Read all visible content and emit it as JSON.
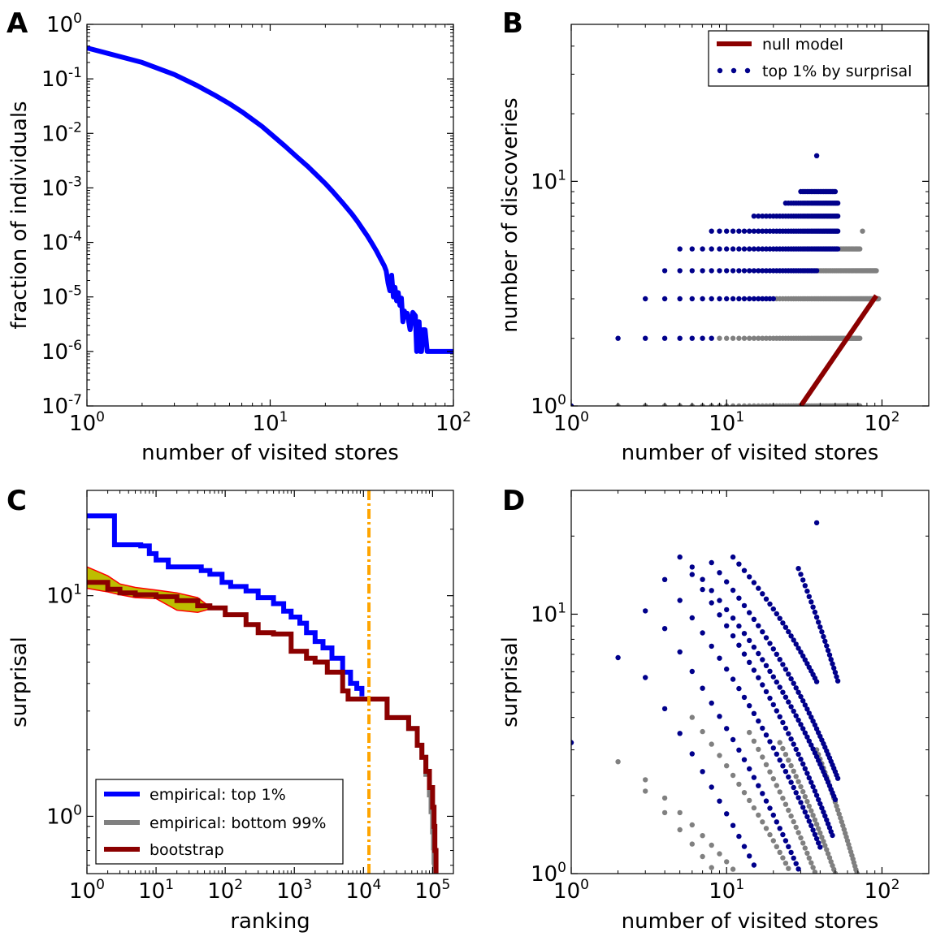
{
  "colors": {
    "blue": "#0000ff",
    "navy": "#00008b",
    "gray": "#808080",
    "darkred": "#8b0000",
    "orange": "#ffa500",
    "olive": "#bdbd00",
    "red": "#ff0000"
  },
  "chart_data": [
    {
      "id": "A",
      "letter": "A",
      "type": "line",
      "xlabel": "number of visited stores",
      "ylabel": "fraction of individuals",
      "xscale": "log",
      "yscale": "log",
      "xlim": [
        1,
        100
      ],
      "ylim": [
        1e-07,
        1
      ],
      "xticks": [
        {
          "base": "10",
          "exp": "0",
          "v": 1
        },
        {
          "base": "10",
          "exp": "1",
          "v": 10
        },
        {
          "base": "10",
          "exp": "2",
          "v": 100
        }
      ],
      "yticks": [
        {
          "base": "10",
          "exp": "0",
          "v": 1
        },
        {
          "base": "10",
          "exp": "-1",
          "v": 0.1
        },
        {
          "base": "10",
          "exp": "-2",
          "v": 0.01
        },
        {
          "base": "10",
          "exp": "-3",
          "v": 0.001
        },
        {
          "base": "10",
          "exp": "-4",
          "v": 0.0001
        },
        {
          "base": "10",
          "exp": "-5",
          "v": 1e-05
        },
        {
          "base": "10",
          "exp": "-6",
          "v": 1e-06
        },
        {
          "base": "10",
          "exp": "-7",
          "v": 1e-07
        }
      ],
      "series": [
        {
          "name": "distribution",
          "color": "#0000ff",
          "x": [
            1,
            2,
            3,
            4,
            5,
            6,
            7,
            8,
            9,
            10,
            12,
            14,
            16,
            18,
            20,
            22,
            25,
            28,
            30,
            32,
            34,
            36,
            38,
            40,
            42,
            43,
            44,
            45,
            46,
            47,
            48,
            49,
            50,
            51,
            52,
            53,
            54,
            55,
            56,
            58,
            60,
            62,
            63,
            64,
            65,
            66,
            67,
            68,
            70,
            72,
            75,
            80,
            90,
            100
          ],
          "y": [
            0.37,
            0.2,
            0.12,
            0.075,
            0.05,
            0.035,
            0.025,
            0.018,
            0.0135,
            0.01,
            0.0059,
            0.0037,
            0.0025,
            0.0017,
            0.0012,
            0.00085,
            0.00052,
            0.00033,
            0.00024,
            0.000175,
            0.00013,
            9.5e-05,
            7e-05,
            5e-05,
            3.7e-05,
            3e-05,
            1.8e-05,
            1.3e-05,
            2.5e-05,
            1e-05,
            1.5e-05,
            8.5e-06,
            1.2e-05,
            7e-06,
            9.5e-06,
            3.5e-06,
            5.5e-06,
            4.5e-06,
            5e-06,
            2.5e-06,
            5.2e-06,
            4.5e-06,
            1e-06,
            2.5e-06,
            3.5e-06,
            1e-06,
            1e-06,
            2.5e-06,
            2.5e-06,
            1e-06,
            1e-06,
            1e-06,
            1e-06,
            1e-06
          ]
        }
      ]
    },
    {
      "id": "B",
      "letter": "B",
      "type": "scatter",
      "xlabel": "number of visited stores",
      "ylabel": "number of discoveries",
      "xscale": "log",
      "yscale": "log",
      "xlim": [
        1,
        200
      ],
      "ylim": [
        1,
        50
      ],
      "xticks": [
        {
          "base": "10",
          "exp": "0",
          "v": 1
        },
        {
          "base": "10",
          "exp": "1",
          "v": 10
        },
        {
          "base": "10",
          "exp": "2",
          "v": 100
        }
      ],
      "yticks": [
        {
          "base": "10",
          "exp": "0",
          "v": 1
        },
        {
          "base": "10",
          "exp": "1",
          "v": 10
        }
      ],
      "legend": {
        "position": "top-right",
        "entries": [
          {
            "label": "null model",
            "kind": "line",
            "color": "#8b0000"
          },
          {
            "label": "top 1% by surprisal",
            "kind": "dots",
            "color": "#00008b"
          }
        ]
      },
      "null_model": {
        "color": "#8b0000",
        "x": [
          30,
          92
        ],
        "y": [
          1,
          3.1
        ]
      },
      "top_rows": [
        {
          "y": 1,
          "x_from": 1,
          "x_to": 1
        },
        {
          "y": 2,
          "x_from": 2,
          "x_to": 8
        },
        {
          "y": 3,
          "x_from": 3,
          "x_to": 20
        },
        {
          "y": 4,
          "x_from": 4,
          "x_to": 38
        },
        {
          "y": 5,
          "x_from": 5,
          "x_to": 52
        },
        {
          "y": 6,
          "x_from": 8,
          "x_to": 52
        },
        {
          "y": 7,
          "x_from": 15,
          "x_to": 52
        },
        {
          "y": 8,
          "x_from": 24,
          "x_to": 52
        },
        {
          "y": 9,
          "x_from": 30,
          "x_to": 50
        },
        {
          "y": 13,
          "x_from": 38,
          "x_to": 38
        }
      ],
      "bottom_rows": [
        {
          "y": 1,
          "x_from": 2,
          "x_to": 72
        },
        {
          "y": 2,
          "x_from": 9,
          "x_to": 72
        },
        {
          "y": 3,
          "x_from": 21,
          "x_to": 95
        },
        {
          "y": 4,
          "x_from": 39,
          "x_to": 92
        },
        {
          "y": 5,
          "x_from": 54,
          "x_to": 72
        },
        {
          "y": 6,
          "x_from": 75,
          "x_to": 75
        }
      ]
    },
    {
      "id": "C",
      "letter": "C",
      "type": "line",
      "xlabel": "ranking",
      "ylabel": "surprisal",
      "xscale": "log",
      "yscale": "log",
      "xlim": [
        1,
        200000
      ],
      "ylim": [
        0.55,
        30
      ],
      "xticks": [
        {
          "base": "10",
          "exp": "0",
          "v": 1
        },
        {
          "base": "10",
          "exp": "1",
          "v": 10
        },
        {
          "base": "10",
          "exp": "2",
          "v": 100
        },
        {
          "base": "10",
          "exp": "3",
          "v": 1000
        },
        {
          "base": "10",
          "exp": "4",
          "v": 10000
        },
        {
          "base": "10",
          "exp": "5",
          "v": 100000
        }
      ],
      "yticks": [
        {
          "base": "10",
          "exp": "0",
          "v": 1
        },
        {
          "base": "10",
          "exp": "1",
          "v": 10
        }
      ],
      "threshold_x": 12000,
      "legend": {
        "position": "bottom-left",
        "entries": [
          {
            "label": "empirical: top 1%",
            "color": "#0000ff"
          },
          {
            "label": "empirical: bottom 99%",
            "color": "#808080"
          },
          {
            "label": "bootstrap",
            "color": "#8b0000"
          }
        ]
      },
      "band": {
        "x": [
          1,
          2,
          3,
          5,
          10,
          20,
          40,
          60,
          100
        ],
        "upper": [
          13.5,
          12.3,
          11.3,
          10.9,
          10.6,
          10.3,
          9.8,
          8.9,
          8.9
        ],
        "lower": [
          10.8,
          10.4,
          10.1,
          9.8,
          9.7,
          8.6,
          8.4,
          8.7,
          8.7
        ]
      },
      "series": [
        {
          "name": "empirical: top 1%",
          "color": "#0000ff",
          "x": [
            1,
            2.5,
            6,
            8,
            10,
            15,
            25,
            45,
            60,
            90,
            120,
            200,
            300,
            500,
            700,
            900,
            1200,
            1500,
            2000,
            2600,
            3500,
            5000,
            6500,
            8000,
            9500
          ],
          "y": [
            23,
            17,
            16.8,
            15.5,
            14.5,
            13.5,
            13.5,
            13,
            12.5,
            11.5,
            11,
            10.5,
            9.8,
            9.2,
            8.5,
            8,
            7.5,
            6.8,
            6.2,
            5.8,
            5.2,
            4.5,
            4,
            3.8,
            3.5
          ]
        },
        {
          "name": "empirical: bottom 99%",
          "color": "#808080",
          "x": [
            11000,
            20000,
            22000,
            40000,
            45000,
            60000,
            70000,
            80000,
            90000,
            95000,
            100000,
            103000,
            105000,
            107000
          ],
          "y": [
            3.4,
            3.4,
            2.8,
            2.8,
            2.5,
            2.1,
            1.85,
            1.55,
            1.25,
            1.05,
            0.85,
            0.72,
            0.62,
            0.55
          ]
        },
        {
          "name": "bootstrap",
          "color": "#8b0000",
          "x": [
            1,
            2,
            3,
            5,
            10,
            20,
            40,
            60,
            100,
            200,
            300,
            500,
            900,
            1200,
            1500,
            2000,
            3000,
            5000,
            6000,
            10000,
            20000,
            22000,
            40000,
            45000,
            60000,
            70000,
            80000,
            90000,
            100000,
            105000,
            108000,
            112000
          ],
          "y": [
            11.5,
            10.7,
            10.3,
            10.1,
            9.9,
            9.5,
            9,
            8.8,
            8.2,
            7.4,
            6.8,
            6.7,
            5.6,
            5.6,
            5.2,
            5,
            4.5,
            3.7,
            3.4,
            3.4,
            3.4,
            2.8,
            2.8,
            2.5,
            2.1,
            1.85,
            1.6,
            1.35,
            1.1,
            0.9,
            0.7,
            0.55
          ]
        }
      ]
    },
    {
      "id": "D",
      "letter": "D",
      "type": "scatter",
      "xlabel": "number of visited stores",
      "ylabel": "surprisal",
      "xscale": "log",
      "yscale": "log",
      "xlim": [
        1,
        200
      ],
      "ylim": [
        1,
        30
      ],
      "xticks": [
        {
          "base": "10",
          "exp": "0",
          "v": 1
        },
        {
          "base": "10",
          "exp": "1",
          "v": 10
        },
        {
          "base": "10",
          "exp": "2",
          "v": 100
        }
      ],
      "yticks": [
        {
          "base": "10",
          "exp": "0",
          "v": 1
        },
        {
          "base": "10",
          "exp": "1",
          "v": 10
        }
      ],
      "top_curves": [
        {
          "x_from": 1,
          "x_to": 1,
          "y_start": 3.2,
          "slope": -1.0
        },
        {
          "x_from": 2,
          "x_to": 2,
          "y_start": 6.8,
          "slope": -1.0
        },
        {
          "x_from": 3,
          "x_to": 3,
          "y_start": 10.3,
          "slope": -1.0
        },
        {
          "x_from": 3,
          "x_to": 35,
          "y_start": 5.7,
          "slope": -0.9
        },
        {
          "x_from": 4,
          "x_to": 38,
          "y_start": 8.8,
          "slope": -0.85
        },
        {
          "x_from": 4,
          "x_to": 40,
          "y_start": 13.6,
          "slope": -0.75
        },
        {
          "x_from": 5,
          "x_to": 48,
          "y_start": 16.6,
          "slope": -0.75
        },
        {
          "x_from": 6,
          "x_to": 50,
          "y_start": 15.2,
          "slope": -0.6
        },
        {
          "x_from": 8,
          "x_to": 52,
          "y_start": 15.8,
          "slope": -0.6
        },
        {
          "x_from": 11,
          "x_to": 38,
          "y_start": 16.6,
          "slope": -0.5
        },
        {
          "x_from": 29,
          "x_to": 52,
          "y_start": 15,
          "slope": -1.0
        },
        {
          "x_from": 38,
          "x_to": 38,
          "y_start": 22.5,
          "slope": -1.0
        }
      ],
      "bottom_curves": [
        {
          "x_from": 2,
          "x_to": 14,
          "y_start": 2.7,
          "slope": -0.6
        },
        {
          "x_from": 3,
          "x_to": 14,
          "y_start": 2.3,
          "slope": -0.5
        },
        {
          "x_from": 6,
          "x_to": 38,
          "y_start": 4.0,
          "slope": -0.7
        },
        {
          "x_from": 14,
          "x_to": 72,
          "y_start": 3.5,
          "slope": -0.85
        },
        {
          "x_from": 22,
          "x_to": 85,
          "y_start": 3.2,
          "slope": -0.8
        },
        {
          "x_from": 38,
          "x_to": 95,
          "y_start": 3.0,
          "slope": -0.9
        }
      ]
    }
  ]
}
